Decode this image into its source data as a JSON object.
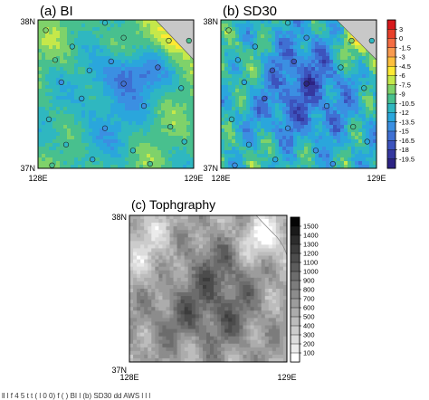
{
  "figure": {
    "caption_fragment": "ll  l  f  4 5   t  t  (  l  0 0)  f (  ) BI  l (b) SD30  dd   AWS  l  l  l"
  },
  "chart_data": [
    {
      "type": "heatmap",
      "panel_label": "(a) BI",
      "x_range": [
        128,
        129
      ],
      "y_range": [
        37,
        38
      ],
      "x_ticks": [
        "128E",
        "129E"
      ],
      "y_ticks": [
        "37N",
        "38N"
      ],
      "aws_markers": [
        [
          128.05,
          37.93
        ],
        [
          128.43,
          37.98
        ],
        [
          128.84,
          37.86
        ],
        [
          128.22,
          37.82
        ],
        [
          128.55,
          37.88
        ],
        [
          128.11,
          37.73
        ],
        [
          128.47,
          37.72
        ],
        [
          128.33,
          37.66
        ],
        [
          128.77,
          37.68
        ],
        [
          128.15,
          37.58
        ],
        [
          128.55,
          37.57
        ],
        [
          128.92,
          37.54
        ],
        [
          128.28,
          37.47
        ],
        [
          128.68,
          37.42
        ],
        [
          128.07,
          37.33
        ],
        [
          128.43,
          37.27
        ],
        [
          128.85,
          37.28
        ],
        [
          128.18,
          37.16
        ],
        [
          128.61,
          37.12
        ],
        [
          128.94,
          37.18
        ],
        [
          128.35,
          37.06
        ],
        [
          128.72,
          37.03
        ],
        [
          128.09,
          37.02
        ],
        [
          128.97,
          37.86
        ]
      ]
    },
    {
      "type": "heatmap",
      "panel_label": "(b) SD30",
      "x_range": [
        128,
        129
      ],
      "y_range": [
        37,
        38
      ],
      "x_ticks": [
        "128E",
        "129E"
      ],
      "y_ticks": [
        "37N",
        "38N"
      ],
      "colorbar": {
        "labels": [
          "3",
          "0",
          "-1.5",
          "-3",
          "-4.5",
          "-6",
          "-7.5",
          "-9",
          "-10.5",
          "-12",
          "-13.5",
          "-15",
          "-16.5",
          "-18",
          "-19.5"
        ],
        "colors": [
          "#d7191c",
          "#e8402a",
          "#f46d43",
          "#f99a4f",
          "#fdbf3d",
          "#fee933",
          "#c5e84a",
          "#7fd26a",
          "#48c08e",
          "#2fb7c0",
          "#2aa6dc",
          "#3b8fe2",
          "#3f70d3",
          "#3c53bd",
          "#35389f",
          "#2c2383"
        ]
      }
    },
    {
      "type": "heatmap",
      "panel_label": "(c) Tophgraphy",
      "x_range": [
        128,
        129
      ],
      "y_range": [
        37,
        38
      ],
      "x_ticks": [
        "128E",
        "129E"
      ],
      "y_ticks": [
        "37N",
        "38N"
      ],
      "colorbar": {
        "labels": [
          "1500",
          "1400",
          "1300",
          "1200",
          "1100",
          "1000",
          "900",
          "800",
          "700",
          "600",
          "500",
          "400",
          "300",
          "200",
          "100"
        ],
        "colors": [
          "#050505",
          "#1a1a1a",
          "#2c2c2c",
          "#3c3c3c",
          "#4c4c4c",
          "#5c5c5c",
          "#6c6c6c",
          "#7c7c7c",
          "#8c8c8c",
          "#9c9c9c",
          "#acacac",
          "#bcbcbc",
          "#cccccc",
          "#dcdcdc",
          "#ebebeb",
          "#ffffff"
        ]
      }
    }
  ]
}
